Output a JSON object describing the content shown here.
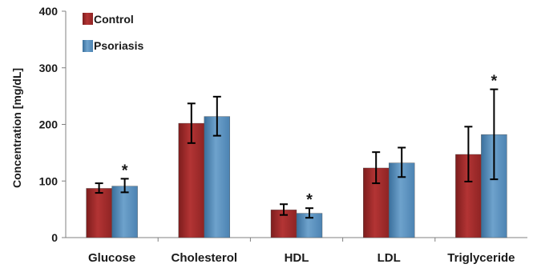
{
  "chart_data": {
    "type": "bar",
    "title": "",
    "xlabel": "",
    "ylabel": "Concentration [mg/dL]",
    "ylim": [
      0,
      400
    ],
    "yticks": [
      0,
      100,
      200,
      300,
      400
    ],
    "grid": false,
    "legend_position": "top-left",
    "categories": [
      "Glucose",
      "Cholesterol",
      "HDL",
      "LDL",
      "Triglyceride"
    ],
    "series": [
      {
        "name": "Control",
        "color": "#a52a2a",
        "values": [
          87,
          202,
          49,
          123,
          147
        ],
        "error_low": [
          79,
          167,
          40,
          96,
          99
        ],
        "error_high": [
          96,
          237,
          59,
          151,
          196
        ],
        "significant": [
          false,
          false,
          false,
          false,
          false
        ]
      },
      {
        "name": "Psoriasis",
        "color": "#4f86b4",
        "values": [
          91,
          214,
          43,
          132,
          182
        ],
        "error_low": [
          80,
          180,
          35,
          107,
          103
        ],
        "error_high": [
          104,
          249,
          52,
          159,
          262
        ],
        "significant": [
          true,
          false,
          true,
          false,
          true
        ]
      }
    ],
    "significance_marker": "*"
  }
}
